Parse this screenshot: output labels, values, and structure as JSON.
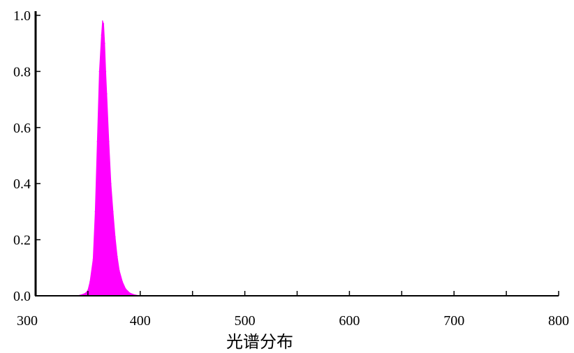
{
  "chart_data": {
    "type": "area",
    "title": "",
    "xlabel": "光谱分布",
    "ylabel": "",
    "xlim": [
      300,
      800
    ],
    "ylim": [
      0,
      1.0
    ],
    "x_tick_labels": [
      "300",
      "400",
      "500",
      "600",
      "700",
      "800"
    ],
    "x_ticks": [
      300,
      350,
      400,
      450,
      500,
      550,
      600,
      650,
      700,
      750,
      800
    ],
    "y_tick_labels": [
      "0.0",
      "0.2",
      "0.4",
      "0.6",
      "0.8",
      "1.0"
    ],
    "y_ticks": [
      0.0,
      0.2,
      0.4,
      0.6,
      0.8,
      1.0
    ],
    "grid": false,
    "colors": {
      "series": "#ff00ff",
      "axis": "#000000"
    },
    "series": [
      {
        "x": [
          340,
          345,
          348,
          350,
          352,
          355,
          357,
          359,
          361,
          363,
          364,
          365,
          366,
          367,
          368,
          370,
          372,
          374,
          376,
          378,
          380,
          383,
          386,
          390,
          395,
          400
        ],
        "y": [
          0.0,
          0.005,
          0.01,
          0.02,
          0.05,
          0.13,
          0.3,
          0.55,
          0.8,
          0.93,
          0.98,
          0.97,
          0.9,
          0.8,
          0.72,
          0.55,
          0.4,
          0.3,
          0.21,
          0.14,
          0.09,
          0.05,
          0.025,
          0.01,
          0.003,
          0.0
        ]
      }
    ]
  }
}
